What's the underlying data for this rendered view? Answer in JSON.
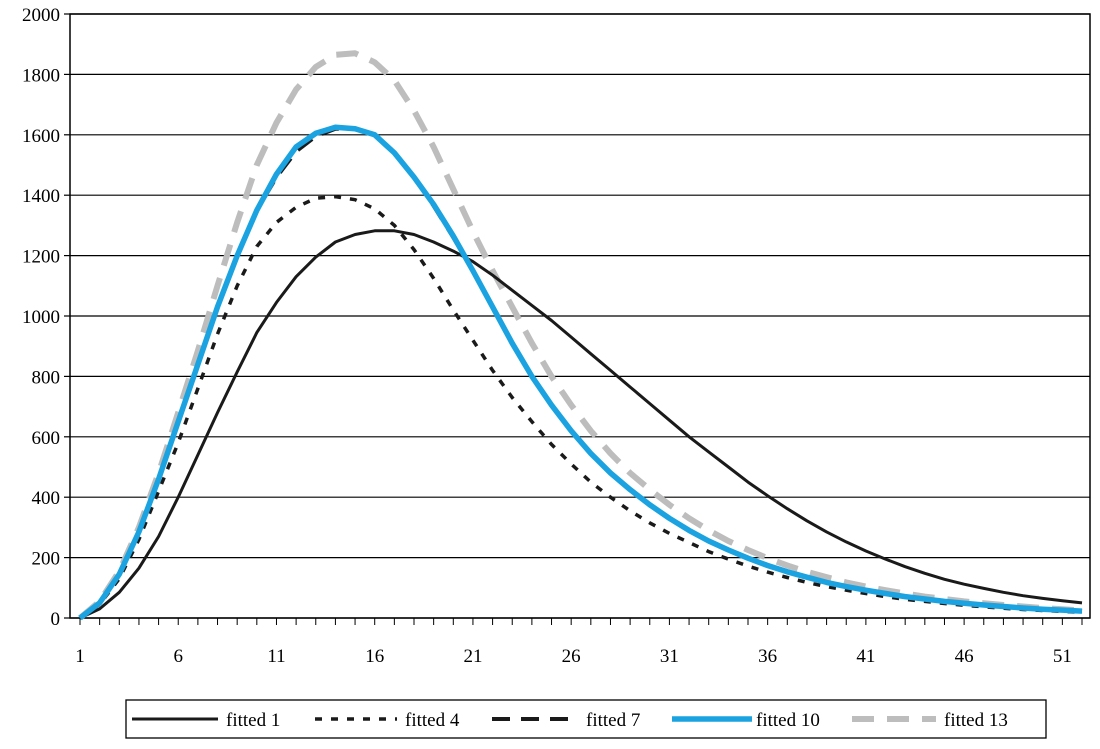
{
  "chart_data": {
    "type": "line",
    "title": "",
    "xlabel": "",
    "ylabel": "",
    "x": [
      1,
      2,
      3,
      4,
      5,
      6,
      7,
      8,
      9,
      10,
      11,
      12,
      13,
      14,
      15,
      16,
      17,
      18,
      19,
      20,
      21,
      22,
      23,
      24,
      25,
      26,
      27,
      28,
      29,
      30,
      31,
      32,
      33,
      34,
      35,
      36,
      37,
      38,
      39,
      40,
      41,
      42,
      43,
      44,
      45,
      46,
      47,
      48,
      49,
      50,
      51,
      52
    ],
    "x_ticks": [
      1,
      6,
      11,
      16,
      21,
      26,
      31,
      36,
      41,
      46,
      51
    ],
    "xlim": [
      1,
      52
    ],
    "ylim": [
      0,
      2000
    ],
    "y_ticks": [
      0,
      200,
      400,
      600,
      800,
      1000,
      1200,
      1400,
      1600,
      1800,
      2000
    ],
    "grid": "horizontal",
    "legend_position": "bottom",
    "series": [
      {
        "name": "fitted 1",
        "color": "#1a1a1a",
        "style": "solid",
        "values": [
          0,
          30,
          85,
          165,
          270,
          400,
          540,
          680,
          815,
          945,
          1045,
          1130,
          1195,
          1245,
          1270,
          1282,
          1282,
          1270,
          1245,
          1215,
          1180,
          1135,
          1085,
          1035,
          985,
          930,
          875,
          820,
          765,
          710,
          655,
          600,
          550,
          500,
          450,
          405,
          362,
          322,
          285,
          252,
          222,
          195,
          170,
          148,
          128,
          112,
          98,
          85,
          74,
          65,
          57,
          50
        ]
      },
      {
        "name": "fitted 4",
        "color": "#1a1a1a",
        "style": "dotted",
        "values": [
          0,
          45,
          130,
          260,
          420,
          580,
          760,
          940,
          1100,
          1230,
          1310,
          1360,
          1390,
          1395,
          1385,
          1355,
          1300,
          1220,
          1125,
          1020,
          920,
          820,
          730,
          650,
          575,
          510,
          450,
          400,
          355,
          315,
          280,
          250,
          220,
          195,
          172,
          152,
          134,
          118,
          104,
          92,
          81,
          71,
          62,
          55,
          48,
          42,
          37,
          32,
          28,
          25,
          22,
          19
        ]
      },
      {
        "name": "fitted 7",
        "color": "#1a1a1a",
        "style": "dashed",
        "values": [
          0,
          50,
          145,
          285,
          460,
          650,
          840,
          1030,
          1200,
          1350,
          1460,
          1545,
          1595,
          1620,
          1620,
          1600,
          1540,
          1460,
          1365,
          1260,
          1150,
          1030,
          910,
          800,
          705,
          620,
          545,
          480,
          425,
          375,
          330,
          290,
          255,
          225,
          198,
          174,
          153,
          135,
          118,
          104,
          92,
          81,
          71,
          63,
          55,
          49,
          43,
          38,
          33,
          29,
          26,
          23
        ]
      },
      {
        "name": "fitted 10",
        "color": "#1aa3e0",
        "style": "solid-thick",
        "values": [
          0,
          50,
          145,
          285,
          460,
          650,
          840,
          1030,
          1200,
          1350,
          1470,
          1560,
          1605,
          1625,
          1620,
          1600,
          1540,
          1460,
          1370,
          1265,
          1150,
          1030,
          910,
          800,
          705,
          620,
          545,
          480,
          425,
          375,
          330,
          290,
          255,
          225,
          198,
          174,
          153,
          135,
          118,
          104,
          92,
          81,
          71,
          63,
          55,
          49,
          43,
          38,
          33,
          29,
          26,
          23
        ]
      },
      {
        "name": "fitted 13",
        "color": "#bdbdbd",
        "style": "dashed-thick",
        "values": [
          0,
          55,
          155,
          300,
          480,
          680,
          885,
          1100,
          1310,
          1500,
          1640,
          1750,
          1825,
          1865,
          1870,
          1840,
          1780,
          1680,
          1560,
          1420,
          1280,
          1150,
          1030,
          910,
          800,
          705,
          620,
          545,
          480,
          425,
          375,
          330,
          290,
          255,
          225,
          198,
          174,
          153,
          135,
          118,
          104,
          92,
          81,
          71,
          63,
          55,
          49,
          43,
          38,
          33,
          29,
          25
        ]
      }
    ]
  }
}
